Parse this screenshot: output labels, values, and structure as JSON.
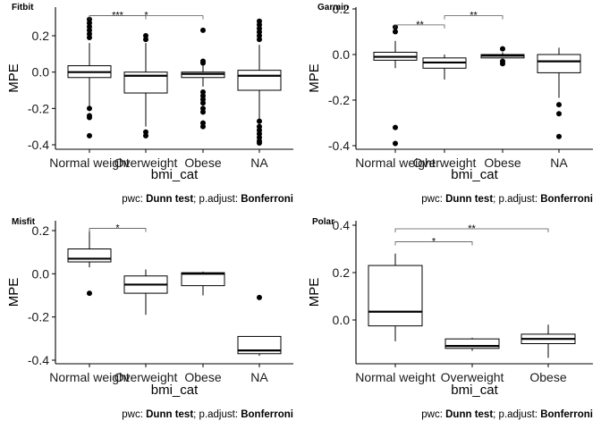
{
  "chart_data": [
    {
      "type": "boxplot",
      "title": "Fitbit",
      "xlabel": "bmi_cat",
      "ylabel": "MPE",
      "ylim": [
        -0.42,
        0.35
      ],
      "yticks": [
        "0.2",
        "0.0",
        "-0.2",
        "-0.4"
      ],
      "ytick_values": [
        0.2,
        0.0,
        -0.2,
        -0.4
      ],
      "categories": [
        "Normal weight",
        "Overweight",
        "Obese",
        "NA"
      ],
      "boxes": [
        {
          "category": "Normal weight",
          "min": -0.19,
          "q1": -0.03,
          "median": 0.0,
          "q3": 0.035,
          "max": 0.16,
          "outliers": [
            0.29,
            0.27,
            0.25,
            0.23,
            0.21,
            0.19,
            -0.2,
            -0.24,
            -0.25,
            -0.35
          ]
        },
        {
          "category": "Overweight",
          "min": -0.3,
          "q1": -0.115,
          "median": -0.02,
          "q3": 0.0,
          "max": 0.16,
          "outliers": [
            0.2,
            0.18,
            -0.33,
            -0.35
          ]
        },
        {
          "category": "Obese",
          "min": -0.08,
          "q1": -0.03,
          "median": -0.01,
          "q3": 0.0,
          "max": 0.05,
          "outliers": [
            0.23,
            0.06,
            0.05,
            -0.11,
            -0.13,
            -0.15,
            -0.17,
            -0.2,
            -0.22,
            -0.28,
            -0.3
          ]
        },
        {
          "category": "NA",
          "min": -0.3,
          "q1": -0.1,
          "median": -0.02,
          "q3": 0.01,
          "max": 0.15,
          "outliers": [
            0.28,
            0.26,
            0.24,
            0.22,
            0.2,
            0.18,
            -0.27,
            -0.3,
            -0.32,
            -0.34,
            -0.36,
            -0.38,
            -0.39
          ]
        }
      ],
      "comparisons": [
        {
          "from": "Normal weight",
          "to": "Overweight",
          "label": "***",
          "y": 0.31
        },
        {
          "from": "Normal weight",
          "to": "Obese",
          "label": "*",
          "y": 0.31
        }
      ],
      "caption": {
        "pwc_prefix": "pwc: ",
        "pwc_method": "Dunn test",
        "adjust_prefix": "; p.adjust: ",
        "adjust_method": "Bonferroni"
      }
    },
    {
      "type": "boxplot",
      "title": "Garmin",
      "xlabel": "bmi_cat",
      "ylabel": "MPE",
      "ylim": [
        -0.41,
        0.2
      ],
      "yticks": [
        "0.2",
        "0.0",
        "-0.2",
        "-0.4"
      ],
      "ytick_values": [
        0.2,
        0.0,
        -0.2,
        -0.4
      ],
      "categories": [
        "Normal weight",
        "Overweight",
        "Obese",
        "NA"
      ],
      "boxes": [
        {
          "category": "Normal weight",
          "min": -0.06,
          "q1": -0.025,
          "median": -0.01,
          "q3": 0.01,
          "max": 0.06,
          "outliers": [
            0.12,
            0.1,
            -0.32,
            -0.39
          ]
        },
        {
          "category": "Overweight",
          "min": -0.11,
          "q1": -0.06,
          "median": -0.035,
          "q3": -0.015,
          "max": 0.0,
          "outliers": []
        },
        {
          "category": "Obese",
          "min": -0.02,
          "q1": -0.015,
          "median": -0.005,
          "q3": 0.0,
          "max": 0.01,
          "outliers": [
            0.025,
            -0.03,
            -0.04
          ]
        },
        {
          "category": "NA",
          "min": -0.19,
          "q1": -0.08,
          "median": -0.03,
          "q3": 0.0,
          "max": 0.03,
          "outliers": [
            -0.22,
            -0.26,
            -0.36
          ]
        }
      ],
      "comparisons": [
        {
          "from": "Normal weight",
          "to": "Overweight",
          "label": "**",
          "y": 0.13
        },
        {
          "from": "Overweight",
          "to": "Obese",
          "label": "**",
          "y": 0.17
        }
      ],
      "caption": {
        "pwc_prefix": "pwc: ",
        "pwc_method": "Dunn test",
        "adjust_prefix": "; p.adjust: ",
        "adjust_method": "Bonferroni"
      }
    },
    {
      "type": "boxplot",
      "title": "Misfit",
      "xlabel": "bmi_cat",
      "ylabel": "MPE",
      "ylim": [
        -0.41,
        0.25
      ],
      "yticks": [
        "0.2",
        "0.0",
        "-0.2",
        "-0.4"
      ],
      "ytick_values": [
        0.2,
        0.0,
        -0.2,
        -0.4
      ],
      "categories": [
        "Normal weight",
        "Overweight",
        "Obese",
        "NA"
      ],
      "boxes": [
        {
          "category": "Normal weight",
          "min": 0.03,
          "q1": 0.055,
          "median": 0.07,
          "q3": 0.115,
          "max": 0.2,
          "outliers": [
            -0.09
          ]
        },
        {
          "category": "Overweight",
          "min": -0.19,
          "q1": -0.09,
          "median": -0.05,
          "q3": -0.01,
          "max": 0.02,
          "outliers": []
        },
        {
          "category": "Obese",
          "min": -0.1,
          "q1": -0.055,
          "median": 0.0,
          "q3": 0.005,
          "max": 0.01,
          "outliers": []
        },
        {
          "category": "NA",
          "min": -0.38,
          "q1": -0.37,
          "median": -0.355,
          "q3": -0.29,
          "max": -0.29,
          "outliers": [
            -0.11
          ]
        }
      ],
      "comparisons": [
        {
          "from": "Normal weight",
          "to": "Overweight",
          "label": "*",
          "y": 0.21
        }
      ],
      "caption": {
        "pwc_prefix": "pwc: ",
        "pwc_method": "Dunn test",
        "adjust_prefix": "; p.adjust: ",
        "adjust_method": "Bonferroni"
      }
    },
    {
      "type": "boxplot",
      "title": "Polar",
      "xlabel": "bmi_cat",
      "ylabel": "MPE",
      "ylim": [
        -0.17,
        0.42
      ],
      "yticks": [
        "0.4",
        "0.2",
        "0.0"
      ],
      "ytick_values": [
        0.4,
        0.2,
        0.0
      ],
      "categories": [
        "Normal weight",
        "Overweight",
        "Obese"
      ],
      "boxes": [
        {
          "category": "Normal weight",
          "min": -0.09,
          "q1": -0.025,
          "median": 0.035,
          "q3": 0.23,
          "max": 0.28,
          "outliers": []
        },
        {
          "category": "Overweight",
          "min": -0.13,
          "q1": -0.12,
          "median": -0.11,
          "q3": -0.08,
          "max": -0.075,
          "outliers": []
        },
        {
          "category": "Obese",
          "min": -0.16,
          "q1": -0.1,
          "median": -0.08,
          "q3": -0.06,
          "max": -0.02,
          "outliers": []
        }
      ],
      "comparisons": [
        {
          "from": "Normal weight",
          "to": "Overweight",
          "label": "*",
          "y": 0.33
        },
        {
          "from": "Normal weight",
          "to": "Obese",
          "label": "**",
          "y": 0.385
        }
      ],
      "caption": {
        "pwc_prefix": "pwc: ",
        "pwc_method": "Dunn test",
        "adjust_prefix": "; p.adjust: ",
        "adjust_method": "Bonferroni"
      }
    }
  ]
}
